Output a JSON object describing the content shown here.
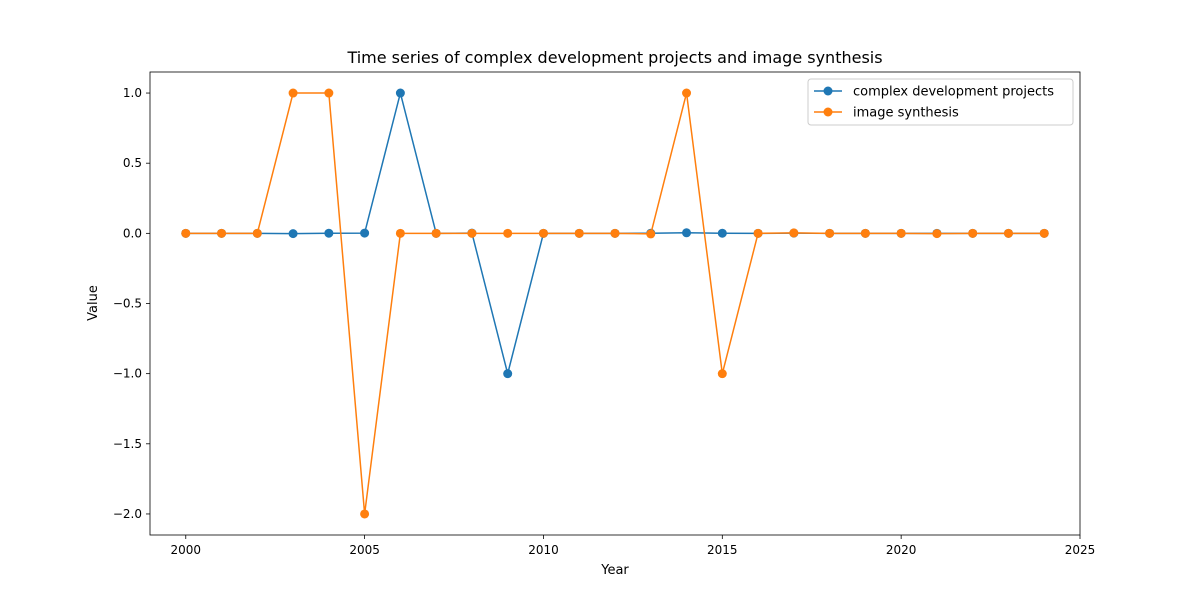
{
  "chart_data": {
    "type": "line",
    "title": "Time series of complex development projects and image synthesis",
    "xlabel": "Year",
    "ylabel": "Value",
    "xlim": [
      1999,
      2025
    ],
    "ylim": [
      -2.15,
      1.15
    ],
    "xticks": [
      2000,
      2005,
      2010,
      2015,
      2020,
      2025
    ],
    "yticks": [
      1.0,
      0.5,
      0.0,
      -0.5,
      -1.0,
      -1.5,
      -2.0
    ],
    "ytick_labels": [
      "1.0",
      "0.5",
      "0.0",
      "−0.5",
      "−1.0",
      "−1.5",
      "−2.0"
    ],
    "grid": false,
    "legend_position": "upper right",
    "x": [
      2000,
      2001,
      2002,
      2003,
      2004,
      2005,
      2006,
      2007,
      2008,
      2009,
      2010,
      2011,
      2012,
      2013,
      2014,
      2015,
      2016,
      2017,
      2018,
      2019,
      2020,
      2021,
      2022,
      2023,
      2024
    ],
    "series": [
      {
        "name": "complex development projects",
        "color": "#1f77b4",
        "values": [
          0,
          0,
          0,
          -0.002,
          0.001,
          0.002,
          1.0,
          0,
          0.002,
          -1.0,
          0,
          0,
          0,
          0.001,
          0.004,
          0.001,
          0,
          0.002,
          0,
          0,
          0,
          0,
          0,
          0,
          0
        ]
      },
      {
        "name": "image synthesis",
        "color": "#ff7f0e",
        "values": [
          0,
          0,
          0,
          1.0,
          1.0,
          -2.0,
          0,
          0,
          0,
          0,
          0,
          0,
          0,
          -0.004,
          1.0,
          -1.0,
          0,
          0.003,
          0,
          0,
          0,
          -0.002,
          0,
          0,
          0
        ]
      }
    ]
  }
}
